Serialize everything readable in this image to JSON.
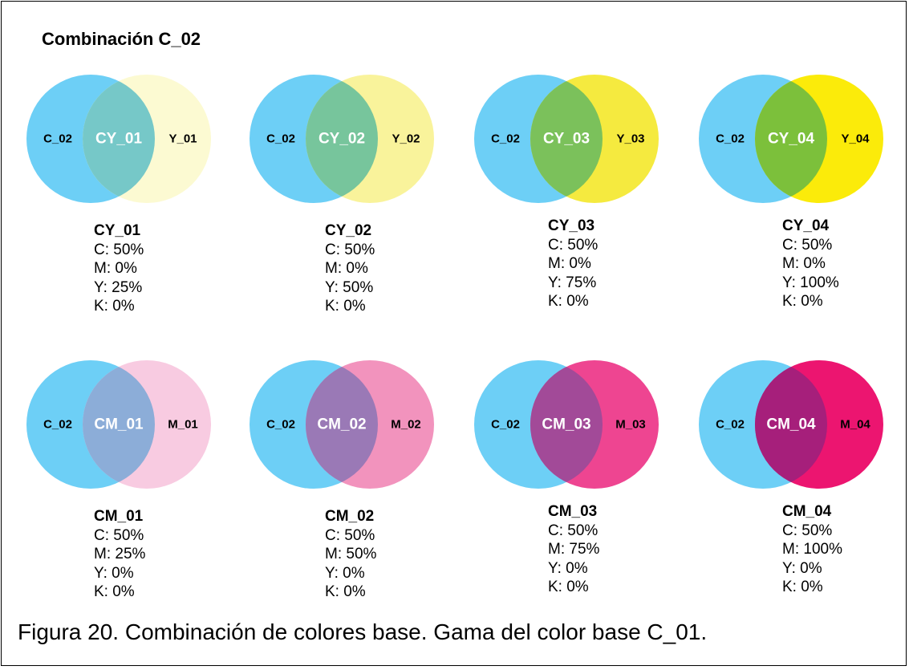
{
  "heading": "Combinación C_02",
  "caption": "Figura 20. Combinación de colores base. Gama del color base C_01.",
  "base_color": "#6dcff6",
  "rows": [
    {
      "items": [
        {
          "left": "C_02",
          "mix": "CY_01",
          "right": "Y_01",
          "right_color": "#fcfad2",
          "overlap_color": "#76c8c8",
          "values": {
            "name": "CY_01",
            "c": "C: 50%",
            "m": "M: 0%",
            "y": "Y: 25%",
            "k": "K: 0%"
          }
        },
        {
          "left": "C_02",
          "mix": "CY_02",
          "right": "Y_02",
          "right_color": "#f9f39b",
          "overlap_color": "#77c59c",
          "values": {
            "name": "CY_02",
            "c": "C: 50%",
            "m": "M: 0%",
            "y": "Y: 50%",
            "k": "K: 0%"
          }
        },
        {
          "left": "C_02",
          "mix": "CY_03",
          "right": "Y_03",
          "right_color": "#f5ea3f",
          "overlap_color": "#7bc15b",
          "values": {
            "name": "CY_03",
            "c": "C: 50%",
            "m": "M: 0%",
            "y": "Y: 75%",
            "k": "K: 0%"
          }
        },
        {
          "left": "C_02",
          "mix": "CY_04",
          "right": "Y_04",
          "right_color": "#fbeb0a",
          "overlap_color": "#7cc03b",
          "values": {
            "name": "CY_04",
            "c": "C: 50%",
            "m": "M: 0%",
            "y": "Y: 100%",
            "k": "K: 0%"
          }
        }
      ]
    },
    {
      "items": [
        {
          "left": "C_02",
          "mix": "CM_01",
          "right": "M_01",
          "right_color": "#f8cbe1",
          "overlap_color": "#8cadd8",
          "values": {
            "name": "CM_01",
            "c": "C: 50%",
            "m": "M: 25%",
            "y": "Y: 0%",
            "k": "K: 0%"
          }
        },
        {
          "left": "C_02",
          "mix": "CM_02",
          "right": "M_02",
          "right_color": "#f293bd",
          "overlap_color": "#9a79b6",
          "values": {
            "name": "CM_02",
            "c": "C: 50%",
            "m": "M: 50%",
            "y": "Y: 0%",
            "k": "K: 0%"
          }
        },
        {
          "left": "C_02",
          "mix": "CM_03",
          "right": "M_03",
          "right_color": "#ee4591",
          "overlap_color": "#a24a98",
          "values": {
            "name": "CM_03",
            "c": "C: 50%",
            "m": "M: 75%",
            "y": "Y: 0%",
            "k": "K: 0%"
          }
        },
        {
          "left": "C_02",
          "mix": "CM_04",
          "right": "M_04",
          "right_color": "#ec1570",
          "overlap_color": "#a61f7b",
          "values": {
            "name": "CM_04",
            "c": "C: 50%",
            "m": "M: 100%",
            "y": "Y: 0%",
            "k": "K: 0%"
          }
        }
      ]
    }
  ]
}
